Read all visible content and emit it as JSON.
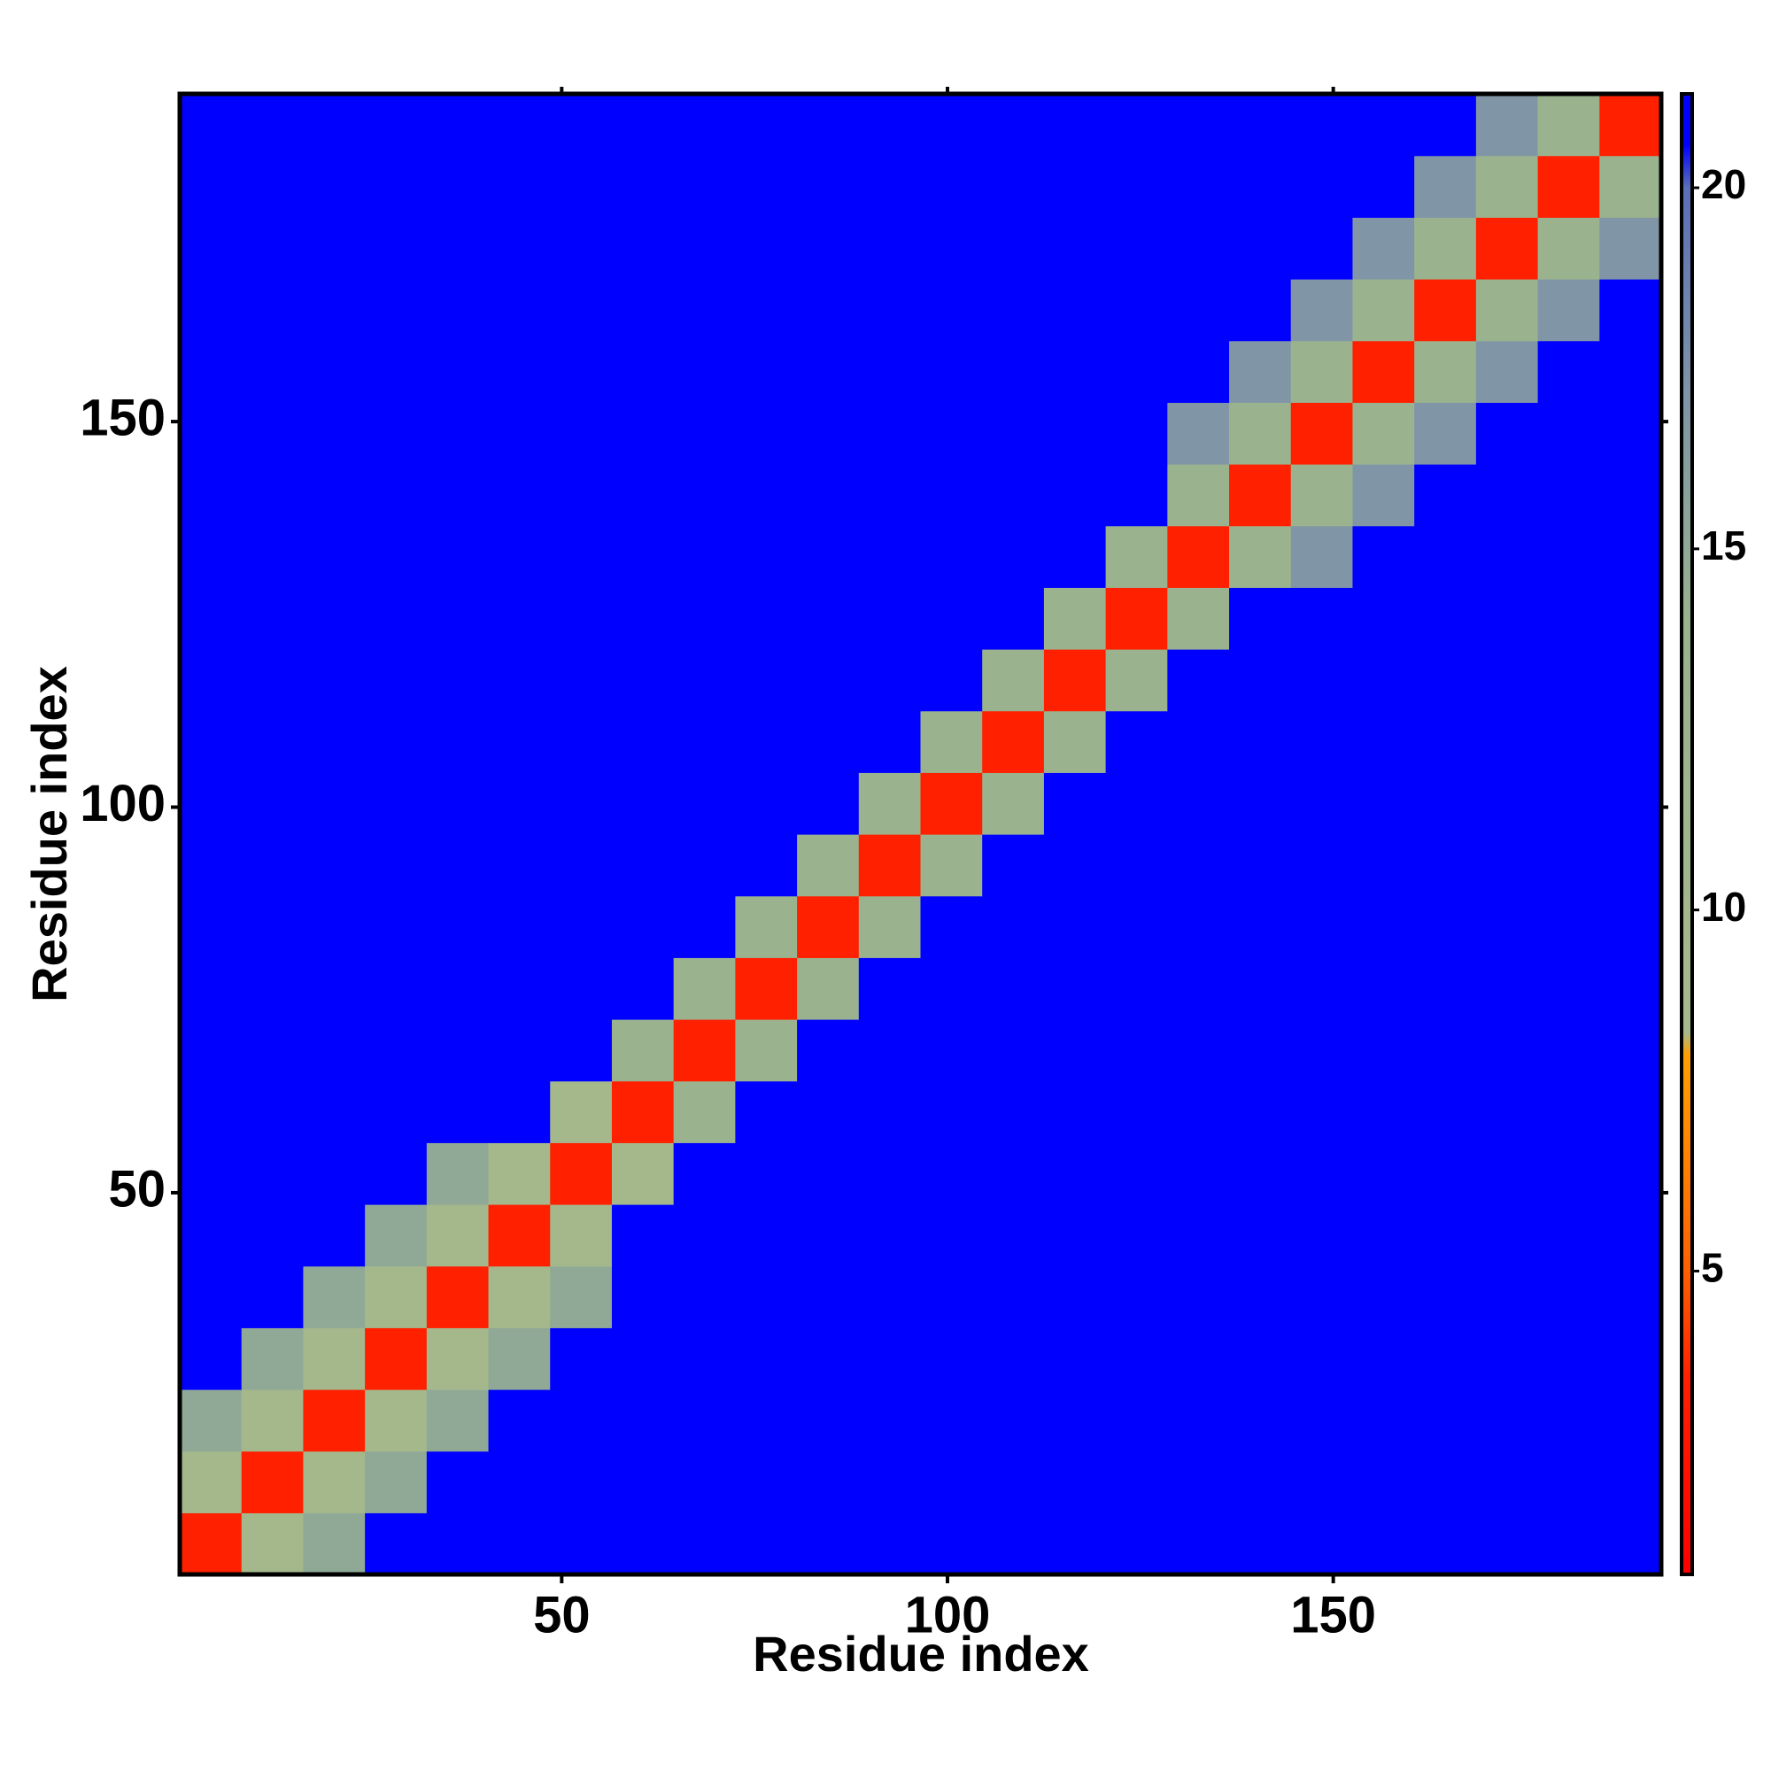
{
  "chart_data": {
    "type": "heatmap",
    "x_label": "Residue index",
    "y_label": "Residue index",
    "x": [
      4.5,
      12.5,
      20.5,
      28.5,
      36.5,
      44.5,
      52.5,
      60.5,
      68.5,
      76.5,
      84.5,
      92.5,
      100.5,
      108.5,
      116.5,
      124.5,
      132.5,
      140.5,
      148.5,
      156.5,
      164.5,
      172.5,
      180.5,
      188.5
    ],
    "y": [
      4.5,
      12.5,
      20.5,
      28.5,
      36.5,
      44.5,
      52.5,
      60.5,
      68.5,
      76.5,
      84.5,
      92.5,
      100.5,
      108.5,
      116.5,
      124.5,
      132.5,
      140.5,
      148.5,
      156.5,
      164.5,
      172.5,
      180.5,
      188.5
    ],
    "cell_size": 8,
    "z": [
      [
        3.5,
        9,
        15,
        21,
        21,
        21,
        21,
        21,
        21,
        21,
        21,
        21,
        21,
        21,
        21,
        21,
        21,
        21,
        21,
        21,
        21,
        21,
        21,
        21
      ],
      [
        9,
        3.5,
        9,
        15,
        21,
        21,
        21,
        21,
        21,
        21,
        21,
        21,
        21,
        21,
        21,
        21,
        21,
        21,
        21,
        21,
        21,
        21,
        21,
        21
      ],
      [
        15,
        9,
        3.5,
        9,
        15,
        21,
        21,
        21,
        21,
        21,
        21,
        21,
        21,
        21,
        21,
        21,
        21,
        21,
        21,
        21,
        21,
        21,
        21,
        21
      ],
      [
        21,
        15,
        9,
        3.5,
        9,
        15,
        21,
        21,
        21,
        21,
        21,
        21,
        21,
        21,
        21,
        21,
        21,
        21,
        21,
        21,
        21,
        21,
        21,
        21
      ],
      [
        21,
        21,
        15,
        9,
        3.5,
        9,
        15,
        21,
        21,
        21,
        21,
        21,
        21,
        21,
        21,
        21,
        21,
        21,
        21,
        21,
        21,
        21,
        21,
        21
      ],
      [
        21,
        21,
        21,
        15,
        9,
        3.5,
        9,
        21,
        21,
        21,
        21,
        21,
        21,
        21,
        21,
        21,
        21,
        21,
        21,
        21,
        21,
        21,
        21,
        21
      ],
      [
        21,
        21,
        21,
        21,
        15,
        9,
        3.5,
        9,
        21,
        21,
        21,
        21,
        21,
        21,
        21,
        21,
        21,
        21,
        21,
        21,
        21,
        21,
        21,
        21
      ],
      [
        21,
        21,
        21,
        21,
        21,
        21,
        9,
        3.5,
        13,
        21,
        21,
        21,
        21,
        21,
        21,
        21,
        21,
        21,
        21,
        21,
        21,
        21,
        21,
        21
      ],
      [
        21,
        21,
        21,
        21,
        21,
        21,
        21,
        13,
        3.5,
        13,
        21,
        21,
        21,
        21,
        21,
        21,
        21,
        21,
        21,
        21,
        21,
        21,
        21,
        21
      ],
      [
        21,
        21,
        21,
        21,
        21,
        21,
        21,
        21,
        13,
        3.5,
        13,
        21,
        21,
        21,
        21,
        21,
        21,
        21,
        21,
        21,
        21,
        21,
        21,
        21
      ],
      [
        21,
        21,
        21,
        21,
        21,
        21,
        21,
        21,
        21,
        13,
        3.5,
        13,
        21,
        21,
        21,
        21,
        21,
        21,
        21,
        21,
        21,
        21,
        21,
        21
      ],
      [
        21,
        21,
        21,
        21,
        21,
        21,
        21,
        21,
        21,
        21,
        13,
        3.5,
        13,
        21,
        21,
        21,
        21,
        21,
        21,
        21,
        21,
        21,
        21,
        21
      ],
      [
        21,
        21,
        21,
        21,
        21,
        21,
        21,
        21,
        21,
        21,
        21,
        13,
        3.5,
        13,
        21,
        21,
        21,
        21,
        21,
        21,
        21,
        21,
        21,
        21
      ],
      [
        21,
        21,
        21,
        21,
        21,
        21,
        21,
        21,
        21,
        21,
        21,
        21,
        13,
        3.5,
        13,
        21,
        21,
        21,
        21,
        21,
        21,
        21,
        21,
        21
      ],
      [
        21,
        21,
        21,
        21,
        21,
        21,
        21,
        21,
        21,
        21,
        21,
        21,
        21,
        13,
        3.5,
        13,
        21,
        21,
        21,
        21,
        21,
        21,
        21,
        21
      ],
      [
        21,
        21,
        21,
        21,
        21,
        21,
        21,
        21,
        21,
        21,
        21,
        21,
        21,
        21,
        13,
        3.5,
        13,
        21,
        21,
        21,
        21,
        21,
        21,
        21
      ],
      [
        21,
        21,
        21,
        21,
        21,
        21,
        21,
        21,
        21,
        21,
        21,
        21,
        21,
        21,
        21,
        13,
        3.5,
        13,
        17,
        21,
        21,
        21,
        21,
        21
      ],
      [
        21,
        21,
        21,
        21,
        21,
        21,
        21,
        21,
        21,
        21,
        21,
        21,
        21,
        21,
        21,
        21,
        13,
        3.5,
        13,
        17,
        21,
        21,
        21,
        21
      ],
      [
        21,
        21,
        21,
        21,
        21,
        21,
        21,
        21,
        21,
        21,
        21,
        21,
        21,
        21,
        21,
        21,
        17,
        13,
        3.5,
        13,
        17,
        21,
        21,
        21
      ],
      [
        21,
        21,
        21,
        21,
        21,
        21,
        21,
        21,
        21,
        21,
        21,
        21,
        21,
        21,
        21,
        21,
        21,
        17,
        13,
        3.5,
        13,
        17,
        21,
        21
      ],
      [
        21,
        21,
        21,
        21,
        21,
        21,
        21,
        21,
        21,
        21,
        21,
        21,
        21,
        21,
        21,
        21,
        21,
        21,
        17,
        13,
        3.5,
        13,
        17,
        21
      ],
      [
        21,
        21,
        21,
        21,
        21,
        21,
        21,
        21,
        21,
        21,
        21,
        21,
        21,
        21,
        21,
        21,
        21,
        21,
        21,
        17,
        13,
        3.5,
        13,
        17
      ],
      [
        21,
        21,
        21,
        21,
        21,
        21,
        21,
        21,
        21,
        21,
        21,
        21,
        21,
        21,
        21,
        21,
        21,
        21,
        21,
        21,
        17,
        13,
        3.5,
        13
      ],
      [
        21,
        21,
        21,
        21,
        21,
        21,
        21,
        21,
        21,
        21,
        21,
        21,
        21,
        21,
        21,
        21,
        21,
        21,
        21,
        21,
        21,
        17,
        13,
        3.5
      ]
    ],
    "xlim": [
      0.5,
      192.5
    ],
    "ylim": [
      0.5,
      192.5
    ],
    "xticks": [
      50,
      100,
      150
    ],
    "yticks": [
      50,
      100,
      150
    ],
    "zlim": [
      0.8,
      21.3
    ],
    "zticks": [
      5,
      10,
      15,
      20
    ],
    "colorscale": [
      [
        0.8,
        "#ff0000"
      ],
      [
        3.5,
        "#ff2000"
      ],
      [
        5,
        "#ff6000"
      ],
      [
        8,
        "#ffa000"
      ],
      [
        8.3,
        "#a6b98c"
      ],
      [
        14,
        "#98b28e"
      ],
      [
        17,
        "#8096a6"
      ],
      [
        20,
        "#5a6fb8"
      ],
      [
        20.6,
        "#0000ff"
      ],
      [
        21.3,
        "#0000ff"
      ]
    ]
  }
}
